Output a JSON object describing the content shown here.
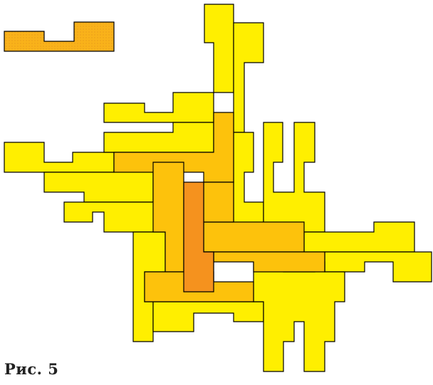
{
  "figure": {
    "caption": "Рис. 5"
  },
  "colors": {
    "light_yellow": "#ffef00",
    "mid_orange": "#fdc20c",
    "dark_orange": "#f5921e",
    "sample_piece": "#f9b21a",
    "sample_dots": "#e89a1a",
    "outline": "#000000"
  },
  "pieces": [
    {
      "name": "sample-piece",
      "shade": "sample_piece",
      "dotted": true
    },
    {
      "name": "piece-top-spike",
      "shade": "light_yellow"
    },
    {
      "name": "piece-upper-left-arm",
      "shade": "light_yellow"
    },
    {
      "name": "piece-left-wing",
      "shade": "light_yellow"
    },
    {
      "name": "piece-left-low-arm",
      "shade": "light_yellow"
    },
    {
      "name": "piece-upper-center",
      "shade": "light_yellow"
    },
    {
      "name": "piece-right-fingers",
      "shade": "light_yellow"
    },
    {
      "name": "piece-right-wing",
      "shade": "light_yellow"
    },
    {
      "name": "piece-bottom-center",
      "shade": "light_yellow"
    },
    {
      "name": "piece-bottom-right-legs",
      "shade": "light_yellow"
    },
    {
      "name": "piece-left-lower",
      "shade": "light_yellow"
    },
    {
      "name": "piece-inner-top",
      "shade": "mid_orange"
    },
    {
      "name": "piece-inner-left",
      "shade": "mid_orange"
    },
    {
      "name": "piece-inner-right",
      "shade": "mid_orange"
    },
    {
      "name": "piece-inner-bottom",
      "shade": "mid_orange"
    },
    {
      "name": "piece-core",
      "shade": "dark_orange"
    }
  ]
}
